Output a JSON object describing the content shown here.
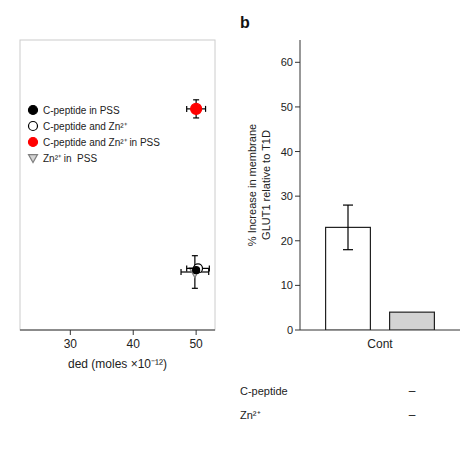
{
  "chart_data": [
    {
      "type": "scatter",
      "xlabel": "ded (moles ×10⁻¹²)",
      "series": [
        {
          "name": "C-peptide in PSS",
          "color": "black",
          "marker": "circle",
          "x": [
            50.0
          ],
          "values": [
            11.5
          ],
          "xerr": [
            null
          ],
          "yerr": [
            null
          ]
        },
        {
          "name": "C-peptide and Zn²⁺",
          "color": "white",
          "marker": "circle",
          "x": [
            50.3
          ],
          "values": [
            12.0
          ],
          "xerr": [
            1.8
          ],
          "yerr": [
            0
          ]
        },
        {
          "name": "C-peptide and Zn²⁺ in PSS",
          "color": "red",
          "marker": "circle",
          "x": [
            50
          ],
          "values": [
            56
          ],
          "xerr": [
            1.5
          ],
          "yerr": [
            2.5
          ]
        },
        {
          "name": "Zn²⁺ in  PSS",
          "color": "lightgray",
          "marker": "triangle_down",
          "x": [
            49.8
          ],
          "values": [
            11
          ],
          "xerr": [
            2.2
          ],
          "yerr": [
            4.5
          ]
        }
      ],
      "xlim": [
        22,
        53
      ],
      "ylim": [
        -5,
        75
      ],
      "xticks": [
        30,
        40,
        50
      ],
      "yticks": [],
      "tick_labels": "x",
      "legend": "upper left"
    },
    {
      "type": "bar",
      "title": "b",
      "ylabel": "% Increase in membrane\nGLUT1 relative to T1D",
      "categories": [
        null,
        null
      ],
      "values": [
        23,
        4
      ],
      "yerr": [
        5,
        null
      ],
      "colors": [
        "white",
        "lightgray"
      ],
      "ylim": [
        0,
        65
      ],
      "yticks": [
        0,
        10,
        20,
        30,
        40,
        50,
        60
      ],
      "annotations": [
        {
          "text": "Cont"
        },
        {
          "text": "C-peptide",
          "cells": [
            null,
            "–"
          ]
        },
        {
          "text": "Zn²⁺",
          "cells": [
            null,
            "–"
          ]
        }
      ]
    }
  ]
}
